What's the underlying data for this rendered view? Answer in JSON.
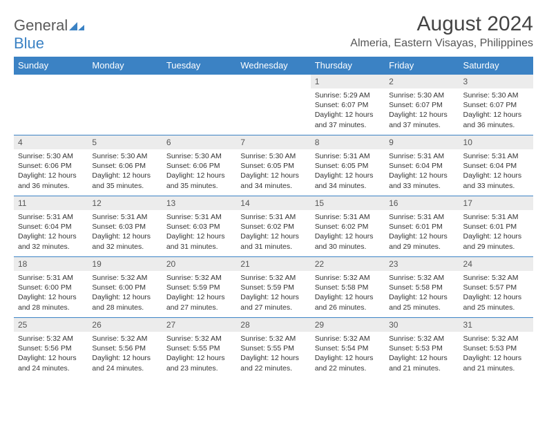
{
  "logo": {
    "part1": "General",
    "part2": "Blue"
  },
  "title": "August 2024",
  "location": "Almeria, Eastern Visayas, Philippines",
  "colors": {
    "header_bg": "#3b82c4",
    "header_text": "#ffffff",
    "daynum_bg": "#ececec",
    "border": "#3b82c4",
    "logo_gray": "#5a5a5a",
    "logo_blue": "#3b82c4"
  },
  "weekdays": [
    "Sunday",
    "Monday",
    "Tuesday",
    "Wednesday",
    "Thursday",
    "Friday",
    "Saturday"
  ],
  "weeks": [
    [
      {
        "empty": true
      },
      {
        "empty": true
      },
      {
        "empty": true
      },
      {
        "empty": true
      },
      {
        "day": "1",
        "sunrise": "Sunrise: 5:29 AM",
        "sunset": "Sunset: 6:07 PM",
        "daylight1": "Daylight: 12 hours",
        "daylight2": "and 37 minutes."
      },
      {
        "day": "2",
        "sunrise": "Sunrise: 5:30 AM",
        "sunset": "Sunset: 6:07 PM",
        "daylight1": "Daylight: 12 hours",
        "daylight2": "and 37 minutes."
      },
      {
        "day": "3",
        "sunrise": "Sunrise: 5:30 AM",
        "sunset": "Sunset: 6:07 PM",
        "daylight1": "Daylight: 12 hours",
        "daylight2": "and 36 minutes."
      }
    ],
    [
      {
        "day": "4",
        "sunrise": "Sunrise: 5:30 AM",
        "sunset": "Sunset: 6:06 PM",
        "daylight1": "Daylight: 12 hours",
        "daylight2": "and 36 minutes."
      },
      {
        "day": "5",
        "sunrise": "Sunrise: 5:30 AM",
        "sunset": "Sunset: 6:06 PM",
        "daylight1": "Daylight: 12 hours",
        "daylight2": "and 35 minutes."
      },
      {
        "day": "6",
        "sunrise": "Sunrise: 5:30 AM",
        "sunset": "Sunset: 6:06 PM",
        "daylight1": "Daylight: 12 hours",
        "daylight2": "and 35 minutes."
      },
      {
        "day": "7",
        "sunrise": "Sunrise: 5:30 AM",
        "sunset": "Sunset: 6:05 PM",
        "daylight1": "Daylight: 12 hours",
        "daylight2": "and 34 minutes."
      },
      {
        "day": "8",
        "sunrise": "Sunrise: 5:31 AM",
        "sunset": "Sunset: 6:05 PM",
        "daylight1": "Daylight: 12 hours",
        "daylight2": "and 34 minutes."
      },
      {
        "day": "9",
        "sunrise": "Sunrise: 5:31 AM",
        "sunset": "Sunset: 6:04 PM",
        "daylight1": "Daylight: 12 hours",
        "daylight2": "and 33 minutes."
      },
      {
        "day": "10",
        "sunrise": "Sunrise: 5:31 AM",
        "sunset": "Sunset: 6:04 PM",
        "daylight1": "Daylight: 12 hours",
        "daylight2": "and 33 minutes."
      }
    ],
    [
      {
        "day": "11",
        "sunrise": "Sunrise: 5:31 AM",
        "sunset": "Sunset: 6:04 PM",
        "daylight1": "Daylight: 12 hours",
        "daylight2": "and 32 minutes."
      },
      {
        "day": "12",
        "sunrise": "Sunrise: 5:31 AM",
        "sunset": "Sunset: 6:03 PM",
        "daylight1": "Daylight: 12 hours",
        "daylight2": "and 32 minutes."
      },
      {
        "day": "13",
        "sunrise": "Sunrise: 5:31 AM",
        "sunset": "Sunset: 6:03 PM",
        "daylight1": "Daylight: 12 hours",
        "daylight2": "and 31 minutes."
      },
      {
        "day": "14",
        "sunrise": "Sunrise: 5:31 AM",
        "sunset": "Sunset: 6:02 PM",
        "daylight1": "Daylight: 12 hours",
        "daylight2": "and 31 minutes."
      },
      {
        "day": "15",
        "sunrise": "Sunrise: 5:31 AM",
        "sunset": "Sunset: 6:02 PM",
        "daylight1": "Daylight: 12 hours",
        "daylight2": "and 30 minutes."
      },
      {
        "day": "16",
        "sunrise": "Sunrise: 5:31 AM",
        "sunset": "Sunset: 6:01 PM",
        "daylight1": "Daylight: 12 hours",
        "daylight2": "and 29 minutes."
      },
      {
        "day": "17",
        "sunrise": "Sunrise: 5:31 AM",
        "sunset": "Sunset: 6:01 PM",
        "daylight1": "Daylight: 12 hours",
        "daylight2": "and 29 minutes."
      }
    ],
    [
      {
        "day": "18",
        "sunrise": "Sunrise: 5:31 AM",
        "sunset": "Sunset: 6:00 PM",
        "daylight1": "Daylight: 12 hours",
        "daylight2": "and 28 minutes."
      },
      {
        "day": "19",
        "sunrise": "Sunrise: 5:32 AM",
        "sunset": "Sunset: 6:00 PM",
        "daylight1": "Daylight: 12 hours",
        "daylight2": "and 28 minutes."
      },
      {
        "day": "20",
        "sunrise": "Sunrise: 5:32 AM",
        "sunset": "Sunset: 5:59 PM",
        "daylight1": "Daylight: 12 hours",
        "daylight2": "and 27 minutes."
      },
      {
        "day": "21",
        "sunrise": "Sunrise: 5:32 AM",
        "sunset": "Sunset: 5:59 PM",
        "daylight1": "Daylight: 12 hours",
        "daylight2": "and 27 minutes."
      },
      {
        "day": "22",
        "sunrise": "Sunrise: 5:32 AM",
        "sunset": "Sunset: 5:58 PM",
        "daylight1": "Daylight: 12 hours",
        "daylight2": "and 26 minutes."
      },
      {
        "day": "23",
        "sunrise": "Sunrise: 5:32 AM",
        "sunset": "Sunset: 5:58 PM",
        "daylight1": "Daylight: 12 hours",
        "daylight2": "and 25 minutes."
      },
      {
        "day": "24",
        "sunrise": "Sunrise: 5:32 AM",
        "sunset": "Sunset: 5:57 PM",
        "daylight1": "Daylight: 12 hours",
        "daylight2": "and 25 minutes."
      }
    ],
    [
      {
        "day": "25",
        "sunrise": "Sunrise: 5:32 AM",
        "sunset": "Sunset: 5:56 PM",
        "daylight1": "Daylight: 12 hours",
        "daylight2": "and 24 minutes."
      },
      {
        "day": "26",
        "sunrise": "Sunrise: 5:32 AM",
        "sunset": "Sunset: 5:56 PM",
        "daylight1": "Daylight: 12 hours",
        "daylight2": "and 24 minutes."
      },
      {
        "day": "27",
        "sunrise": "Sunrise: 5:32 AM",
        "sunset": "Sunset: 5:55 PM",
        "daylight1": "Daylight: 12 hours",
        "daylight2": "and 23 minutes."
      },
      {
        "day": "28",
        "sunrise": "Sunrise: 5:32 AM",
        "sunset": "Sunset: 5:55 PM",
        "daylight1": "Daylight: 12 hours",
        "daylight2": "and 22 minutes."
      },
      {
        "day": "29",
        "sunrise": "Sunrise: 5:32 AM",
        "sunset": "Sunset: 5:54 PM",
        "daylight1": "Daylight: 12 hours",
        "daylight2": "and 22 minutes."
      },
      {
        "day": "30",
        "sunrise": "Sunrise: 5:32 AM",
        "sunset": "Sunset: 5:53 PM",
        "daylight1": "Daylight: 12 hours",
        "daylight2": "and 21 minutes."
      },
      {
        "day": "31",
        "sunrise": "Sunrise: 5:32 AM",
        "sunset": "Sunset: 5:53 PM",
        "daylight1": "Daylight: 12 hours",
        "daylight2": "and 21 minutes."
      }
    ]
  ]
}
